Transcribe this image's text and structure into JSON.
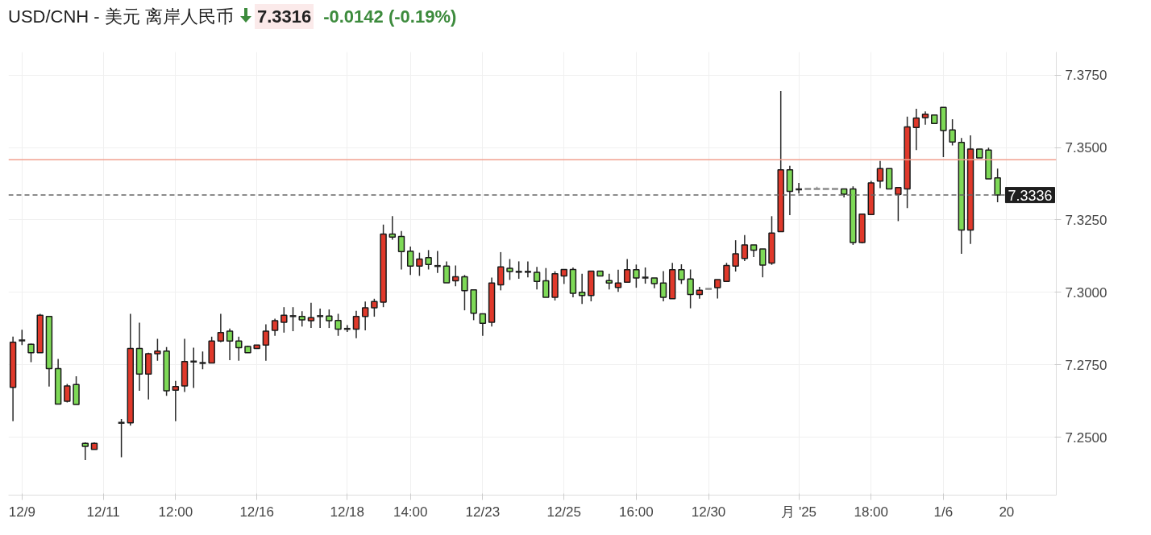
{
  "chart_data": {
    "type": "candlestick",
    "title": "USD/CNH - 美元 离岸人民币",
    "annotations": [
      "7.3316",
      "-0.0142 (-0.19%)"
    ],
    "categories": [
      null,
      "12/9",
      null,
      null,
      null,
      null,
      null,
      null,
      null,
      null,
      "12/11",
      null,
      null,
      null,
      null,
      null,
      null,
      null,
      "12:00",
      null,
      null,
      null,
      null,
      null,
      null,
      null,
      null,
      "12/16",
      null,
      null,
      null,
      null,
      null,
      null,
      null,
      null,
      null,
      "12/18",
      null,
      null,
      null,
      null,
      null,
      null,
      "14:00",
      null,
      null,
      null,
      null,
      null,
      null,
      null,
      "12/23",
      null,
      null,
      null,
      null,
      null,
      null,
      null,
      null,
      "12/25",
      null,
      null,
      null,
      null,
      null,
      null,
      null,
      "16:00",
      null,
      null,
      null,
      null,
      null,
      null,
      null,
      "12/30",
      null,
      null,
      null,
      null,
      null,
      null,
      null,
      null,
      null,
      "月 '25",
      null,
      null,
      null,
      null,
      null,
      null,
      null,
      "18:00",
      null,
      null,
      null,
      null,
      null,
      null,
      null,
      "1/6",
      null,
      null,
      null,
      null,
      null,
      null,
      "20"
    ],
    "ohlc": [
      [
        7.2672,
        7.2847,
        7.2555,
        7.2828
      ],
      [
        7.2834,
        7.2871,
        7.2818,
        7.2834
      ],
      [
        7.2821,
        7.2823,
        7.2759,
        7.2792
      ],
      [
        7.2792,
        7.2926,
        7.2792,
        7.2921
      ],
      [
        7.2917,
        7.2917,
        7.2675,
        7.2737
      ],
      [
        7.2737,
        7.277,
        7.2614,
        7.2614
      ],
      [
        7.2624,
        7.2684,
        7.262,
        7.2677
      ],
      [
        7.2682,
        7.271,
        7.2613,
        7.2613
      ],
      [
        7.2479,
        7.2482,
        7.2421,
        7.2468
      ],
      [
        7.2458,
        7.2482,
        7.2458,
        7.2479
      ],
      null,
      null,
      [
        7.255,
        7.2563,
        7.2431,
        7.255
      ],
      [
        7.255,
        7.2926,
        7.254,
        7.2806
      ],
      [
        7.2806,
        7.2895,
        7.266,
        7.2718
      ],
      [
        7.2718,
        7.2792,
        7.263,
        7.2788
      ],
      [
        7.2788,
        7.284,
        7.2764,
        7.2797
      ],
      [
        7.2797,
        7.2811,
        7.2643,
        7.266
      ],
      [
        7.2662,
        7.2694,
        7.2555,
        7.2675
      ],
      [
        7.2677,
        7.284,
        7.2656,
        7.2761
      ],
      [
        7.2761,
        7.2809,
        7.267,
        7.2761
      ],
      [
        7.2756,
        7.2796,
        7.2735,
        7.2756
      ],
      [
        7.2756,
        7.2847,
        7.2756,
        7.2832
      ],
      [
        7.2832,
        7.2926,
        7.2828,
        7.2861
      ],
      [
        7.2866,
        7.2875,
        7.2766,
        7.2832
      ],
      [
        7.2832,
        7.2847,
        7.2764,
        7.2809
      ],
      [
        7.2813,
        7.2816,
        7.2792,
        7.2792
      ],
      [
        7.2806,
        7.2818,
        7.2806,
        7.2818
      ],
      [
        7.2818,
        7.289,
        7.2764,
        7.2866
      ],
      [
        7.2869,
        7.2909,
        7.285,
        7.2902
      ],
      [
        7.2897,
        7.2949,
        7.2861,
        7.2921
      ],
      [
        7.2918,
        7.2949,
        7.2866,
        7.2918
      ],
      [
        7.2917,
        7.2935,
        7.2882,
        7.2905
      ],
      [
        7.2902,
        7.2964,
        7.2877,
        7.2913
      ],
      [
        7.2918,
        7.2944,
        7.2877,
        7.2918
      ],
      [
        7.2918,
        7.2941,
        7.2877,
        7.2902
      ],
      [
        7.2903,
        7.2926,
        7.285,
        7.2873
      ],
      [
        7.2874,
        7.2887,
        7.2863,
        7.2874
      ],
      [
        7.2873,
        7.2936,
        7.2842,
        7.2917
      ],
      [
        7.2917,
        7.2968,
        7.2869,
        7.2947
      ],
      [
        7.2947,
        7.2978,
        7.2916,
        7.2968
      ],
      [
        7.2966,
        7.3234,
        7.2949,
        7.3201
      ],
      [
        7.3201,
        7.3263,
        7.3182,
        7.3191
      ],
      [
        7.3193,
        7.3212,
        7.3079,
        7.3141
      ],
      [
        7.3142,
        7.3158,
        7.306,
        7.3091
      ],
      [
        7.3091,
        7.3137,
        7.3057,
        7.3115
      ],
      [
        7.312,
        7.3146,
        7.3079,
        7.3096
      ],
      [
        7.3091,
        7.3143,
        7.3067,
        7.3091
      ],
      [
        7.3091,
        7.3107,
        7.3033,
        7.3033
      ],
      [
        7.304,
        7.3093,
        7.3021,
        7.3054
      ],
      [
        7.3054,
        7.306,
        7.2938,
        7.3006
      ],
      [
        7.3009,
        7.3009,
        7.2904,
        7.2928
      ],
      [
        7.2926,
        7.2926,
        7.285,
        7.2893
      ],
      [
        7.2897,
        7.3051,
        7.2882,
        7.3032
      ],
      [
        7.3026,
        7.3139,
        7.3007,
        7.3088
      ],
      [
        7.3083,
        7.3115,
        7.3043,
        7.3072
      ],
      [
        7.3071,
        7.3107,
        7.3047,
        7.3071
      ],
      [
        7.3071,
        7.3107,
        7.3052,
        7.3071
      ],
      [
        7.3069,
        7.3088,
        7.301,
        7.3038
      ],
      [
        7.304,
        7.3084,
        7.2983,
        7.2983
      ],
      [
        7.2983,
        7.3073,
        7.2972,
        7.3064
      ],
      [
        7.3057,
        7.3079,
        7.3029,
        7.3079
      ],
      [
        7.3079,
        7.3086,
        7.2983,
        7.2997
      ],
      [
        7.3,
        7.3064,
        7.296,
        7.2989
      ],
      [
        7.2989,
        7.3073,
        7.2969,
        7.3073
      ],
      [
        7.3073,
        7.3073,
        7.3057,
        7.3057
      ],
      [
        7.3041,
        7.3064,
        7.301,
        7.3032
      ],
      [
        7.3017,
        7.3078,
        7.3002,
        7.3032
      ],
      [
        7.3035,
        7.3115,
        7.3035,
        7.3078
      ],
      [
        7.3078,
        7.3096,
        7.3016,
        7.305
      ],
      [
        7.3051,
        7.3086,
        7.303,
        7.3051
      ],
      [
        7.305,
        7.305,
        7.3014,
        7.303
      ],
      [
        7.3032,
        7.3073,
        7.2969,
        7.2983
      ],
      [
        7.2978,
        7.3102,
        7.2978,
        7.3078
      ],
      [
        7.3078,
        7.3097,
        7.3029,
        7.3044
      ],
      [
        7.3046,
        7.3079,
        7.2945,
        7.2993
      ],
      [
        7.2993,
        7.3019,
        7.2978,
        7.3007
      ],
      [
        7.3012,
        7.3012,
        7.3012,
        7.3012
      ],
      [
        7.3016,
        7.3044,
        7.2979,
        7.3044
      ],
      [
        7.3038,
        7.3102,
        7.3038,
        7.3093
      ],
      [
        7.3091,
        7.318,
        7.3072,
        7.3133
      ],
      [
        7.3117,
        7.3198,
        7.3108,
        7.3164
      ],
      [
        7.3164,
        7.3164,
        7.3122,
        7.3146
      ],
      [
        7.315,
        7.315,
        7.3052,
        7.3094
      ],
      [
        7.3101,
        7.3263,
        7.3095,
        7.3205
      ],
      [
        7.321,
        7.3695,
        7.321,
        7.3423
      ],
      [
        7.3423,
        7.3437,
        7.3267,
        7.3349
      ],
      [
        7.3356,
        7.3378,
        7.3341,
        7.3356
      ],
      [
        7.3357,
        7.3357,
        7.3357,
        7.3357
      ],
      [
        7.3357,
        7.3365,
        7.3357,
        7.3357
      ],
      [
        7.3357,
        7.3357,
        7.3357,
        7.3357
      ],
      [
        7.3357,
        7.3357,
        7.3357,
        7.3357
      ],
      [
        7.3357,
        7.3357,
        7.3328,
        7.3339
      ],
      [
        7.3357,
        7.3366,
        7.3164,
        7.3172
      ],
      [
        7.3172,
        7.327,
        7.3169,
        7.327
      ],
      [
        7.3269,
        7.3385,
        7.3269,
        7.3378
      ],
      [
        7.3384,
        7.3454,
        7.336,
        7.3427
      ],
      [
        7.3427,
        7.3427,
        7.3357,
        7.3357
      ],
      [
        7.3338,
        7.3362,
        7.3246,
        7.3362
      ],
      [
        7.3357,
        7.3607,
        7.3291,
        7.3571
      ],
      [
        7.3569,
        7.3634,
        7.3491,
        7.3602
      ],
      [
        7.3603,
        7.3625,
        7.3579,
        7.3615
      ],
      [
        7.3612,
        7.3612,
        7.3583,
        7.3583
      ],
      [
        7.3639,
        7.3639,
        7.3467,
        7.3559
      ],
      [
        7.3561,
        7.3598,
        7.3507,
        7.3519
      ],
      [
        7.3518,
        7.3533,
        7.3133,
        7.3215
      ],
      [
        7.3215,
        7.3542,
        7.3167,
        7.3495
      ],
      [
        7.3495,
        7.3495,
        7.3464,
        7.3464
      ],
      [
        7.3491,
        7.35,
        7.3392,
        7.3392
      ],
      [
        7.3395,
        7.3427,
        7.3311,
        7.3336
      ],
      null
    ],
    "colors": [
      "#e0392b",
      "#222222",
      "#7ed957",
      "#e0392b",
      "#7ed957",
      "#7ed957",
      "#e0392b",
      "#7ed957",
      "#7ed957",
      "#e0392b",
      null,
      null,
      "#222222",
      "#e0392b",
      "#7ed957",
      "#e0392b",
      "#e0392b",
      "#7ed957",
      "#e0392b",
      "#e0392b",
      "#222222",
      "#222222",
      "#e0392b",
      "#e0392b",
      "#7ed957",
      "#7ed957",
      "#7ed957",
      "#e0392b",
      "#e0392b",
      "#e0392b",
      "#e0392b",
      "#222222",
      "#7ed957",
      "#e0392b",
      "#222222",
      "#7ed957",
      "#7ed957",
      "#222222",
      "#e0392b",
      "#e0392b",
      "#e0392b",
      "#e0392b",
      "#7ed957",
      "#7ed957",
      "#7ed957",
      "#e0392b",
      "#7ed957",
      "#222222",
      "#7ed957",
      "#e0392b",
      "#7ed957",
      "#7ed957",
      "#7ed957",
      "#e0392b",
      "#e0392b",
      "#7ed957",
      "#222222",
      "#222222",
      "#7ed957",
      "#7ed957",
      "#e0392b",
      "#e0392b",
      "#7ed957",
      "#7ed957",
      "#e0392b",
      "#7ed957",
      "#7ed957",
      "#e0392b",
      "#e0392b",
      "#7ed957",
      "#222222",
      "#7ed957",
      "#7ed957",
      "#e0392b",
      "#7ed957",
      "#7ed957",
      "#e0392b",
      "#8a8a8a",
      "#e0392b",
      "#e0392b",
      "#e0392b",
      "#e0392b",
      "#7ed957",
      "#7ed957",
      "#e0392b",
      "#e0392b",
      "#7ed957",
      "#222222",
      "#8a8a8a",
      "#8a8a8a",
      "#8a8a8a",
      "#8a8a8a",
      "#7ed957",
      "#7ed957",
      "#e0392b",
      "#e0392b",
      "#e0392b",
      "#7ed957",
      "#e0392b",
      "#e0392b",
      "#e0392b",
      "#e0392b",
      "#7ed957",
      "#7ed957",
      "#7ed957",
      "#7ed957",
      "#e0392b",
      "#7ed957",
      "#7ed957",
      "#7ed957",
      null
    ],
    "ylim": [
      7.23,
      7.383
    ],
    "yticks": [
      {
        "value": 7.25,
        "label": "7.2500"
      },
      {
        "value": 7.275,
        "label": "7.2750"
      },
      {
        "value": 7.3,
        "label": "7.3000"
      },
      {
        "value": 7.325,
        "label": "7.3250"
      },
      {
        "value": 7.35,
        "label": "7.3500"
      },
      {
        "value": 7.375,
        "label": "7.3750"
      }
    ],
    "ref_lines": [
      {
        "axis": "y",
        "value": 7.3458,
        "color": "#f2a08f",
        "line_style": "solid"
      },
      {
        "axis": "y",
        "value": 7.3336,
        "label": "7.3336",
        "color": "#666666",
        "line_style": "dashed"
      }
    ],
    "grid": true
  }
}
